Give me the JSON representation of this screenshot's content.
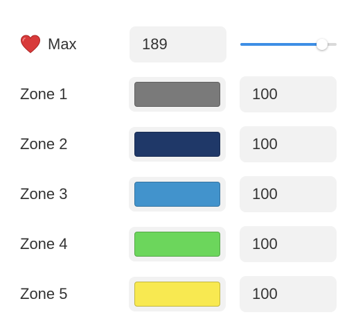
{
  "max": {
    "label": "Max",
    "icon": "heart-icon",
    "value": "189",
    "slider_fraction": 0.85,
    "accent_color": "#3d8ee5"
  },
  "zones": [
    {
      "label": "Zone 1",
      "color": "#7a7a7a",
      "value": "100"
    },
    {
      "label": "Zone 2",
      "color": "#1f3868",
      "value": "100"
    },
    {
      "label": "Zone 3",
      "color": "#4293cc",
      "value": "100"
    },
    {
      "label": "Zone 4",
      "color": "#6cd65c",
      "value": "100"
    },
    {
      "label": "Zone 5",
      "color": "#f8e951",
      "value": "100"
    }
  ]
}
